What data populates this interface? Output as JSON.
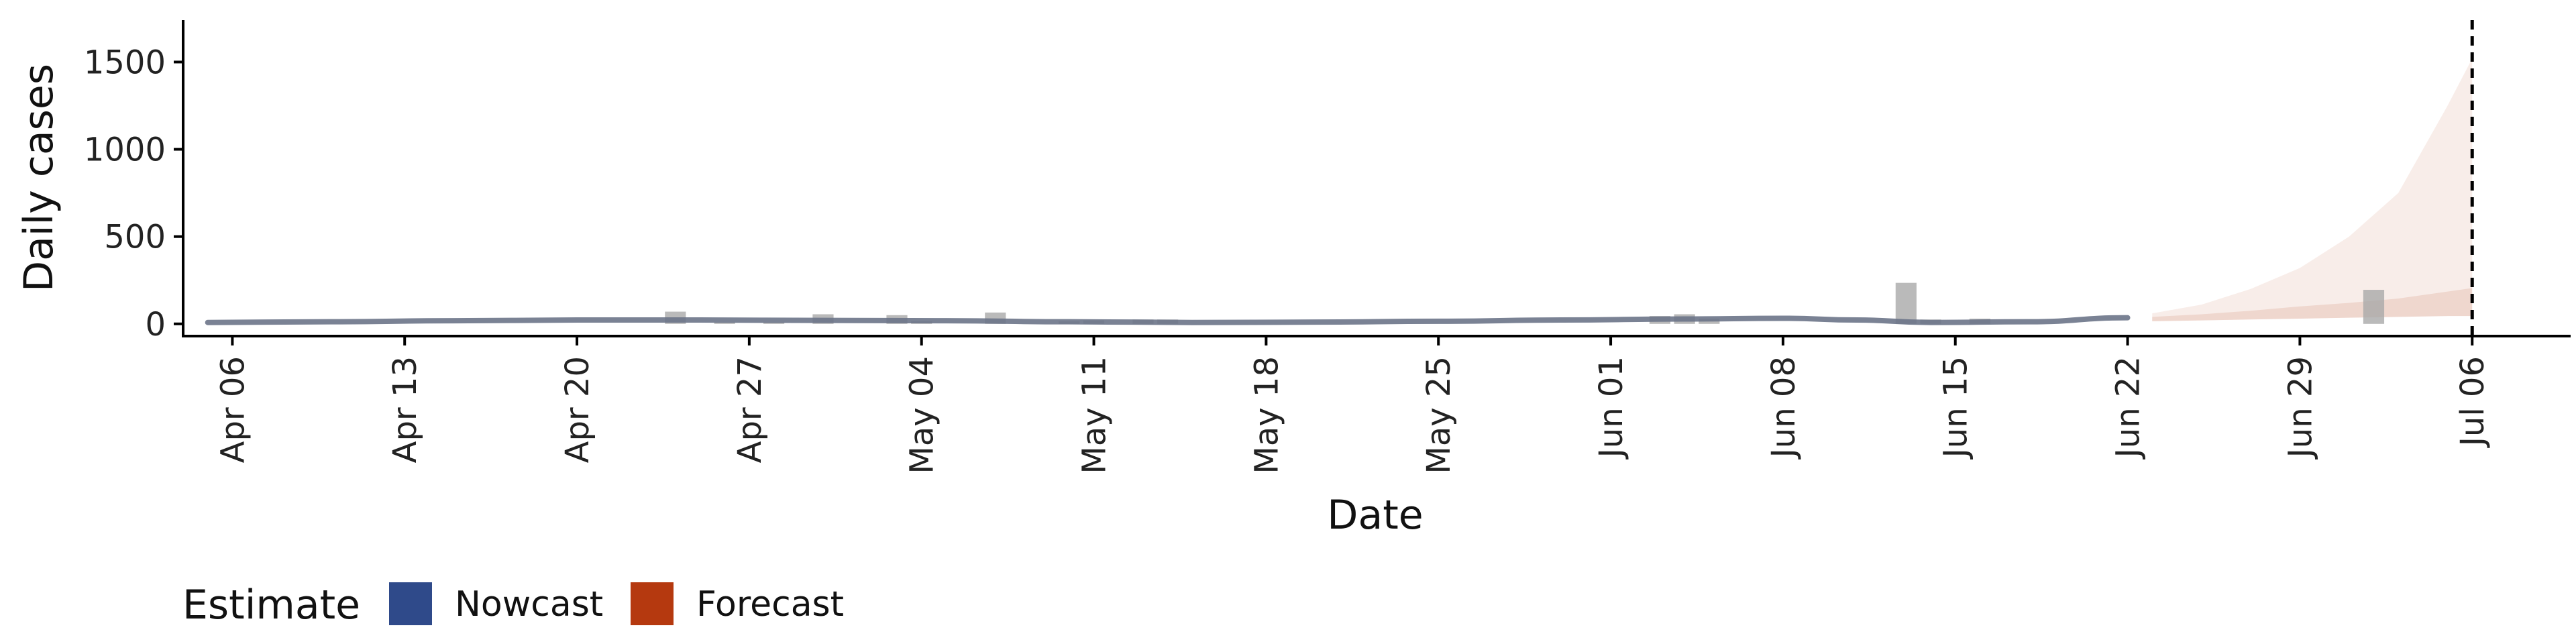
{
  "chart_data": {
    "type": "bar",
    "xlabel": "Date",
    "ylabel": "Daily cases",
    "x_tick_labels": [
      "Apr 06",
      "Apr 13",
      "Apr 20",
      "Apr 27",
      "May 04",
      "May 11",
      "May 18",
      "May 25",
      "Jun 01",
      "Jun 08",
      "Jun 15",
      "Jun 22",
      "Jun 29",
      "Jul 06"
    ],
    "y_tick_labels": [
      "0",
      "500",
      "1000",
      "1500"
    ],
    "y_ticks": [
      0,
      500,
      1000,
      1500
    ],
    "xlim": [
      "2020-04-04",
      "2020-07-10"
    ],
    "ylim": [
      -70,
      1740
    ],
    "grid": false,
    "forecast_date": "2020-07-06",
    "legend": {
      "title": "Estimate",
      "position": "bottom-left",
      "entries": [
        {
          "label": "Nowcast",
          "color": "#2f4a8a"
        },
        {
          "label": "Forecast",
          "color": "#b5390f"
        }
      ]
    },
    "colors": {
      "bars": "#a9a9a9",
      "nowcast_line": "#6b7488",
      "forecast_band": "#b5390f",
      "axis": "#000000"
    },
    "series": [
      {
        "type": "bar",
        "points": [
          {
            "x": "2020-04-24",
            "y": 70
          },
          {
            "x": "2020-04-26",
            "y": 10
          },
          {
            "x": "2020-04-28",
            "y": 10
          },
          {
            "x": "2020-04-30",
            "y": 55
          },
          {
            "x": "2020-05-03",
            "y": 50
          },
          {
            "x": "2020-05-04",
            "y": 15
          },
          {
            "x": "2020-05-07",
            "y": 65
          },
          {
            "x": "2020-05-10",
            "y": 15
          },
          {
            "x": "2020-05-11",
            "y": 20
          },
          {
            "x": "2020-05-13",
            "y": 25
          },
          {
            "x": "2020-05-14",
            "y": 25
          },
          {
            "x": "2020-06-03",
            "y": 45
          },
          {
            "x": "2020-06-04",
            "y": 55
          },
          {
            "x": "2020-06-05",
            "y": 30
          },
          {
            "x": "2020-06-13",
            "y": 235
          },
          {
            "x": "2020-06-14",
            "y": 25
          },
          {
            "x": "2020-06-16",
            "y": 30
          },
          {
            "x": "2020-07-02",
            "y": 195
          }
        ]
      },
      {
        "type": "line",
        "points": [
          {
            "x": "2020-04-05",
            "y": 8
          },
          {
            "x": "2020-04-10",
            "y": 12
          },
          {
            "x": "2020-04-15",
            "y": 18
          },
          {
            "x": "2020-04-20",
            "y": 22
          },
          {
            "x": "2020-04-25",
            "y": 22
          },
          {
            "x": "2020-04-30",
            "y": 20
          },
          {
            "x": "2020-05-05",
            "y": 18
          },
          {
            "x": "2020-05-10",
            "y": 12
          },
          {
            "x": "2020-05-15",
            "y": 8
          },
          {
            "x": "2020-05-20",
            "y": 10
          },
          {
            "x": "2020-05-25",
            "y": 15
          },
          {
            "x": "2020-05-30",
            "y": 22
          },
          {
            "x": "2020-06-04",
            "y": 28
          },
          {
            "x": "2020-06-08",
            "y": 32
          },
          {
            "x": "2020-06-11",
            "y": 22
          },
          {
            "x": "2020-06-14",
            "y": 8
          },
          {
            "x": "2020-06-18",
            "y": 12
          },
          {
            "x": "2020-06-22",
            "y": 35
          }
        ]
      },
      {
        "type": "band",
        "points": [
          {
            "x": "2020-06-23",
            "lower": 15,
            "upper": 60,
            "inner_upper": 40
          },
          {
            "x": "2020-06-25",
            "lower": 20,
            "upper": 110,
            "inner_upper": 55
          },
          {
            "x": "2020-06-27",
            "lower": 25,
            "upper": 200,
            "inner_upper": 75
          },
          {
            "x": "2020-06-29",
            "lower": 30,
            "upper": 320,
            "inner_upper": 100
          },
          {
            "x": "2020-07-01",
            "lower": 35,
            "upper": 500,
            "inner_upper": 120
          },
          {
            "x": "2020-07-03",
            "lower": 40,
            "upper": 750,
            "inner_upper": 145
          },
          {
            "x": "2020-07-05",
            "lower": 45,
            "upper": 1250,
            "inner_upper": 185
          },
          {
            "x": "2020-07-06",
            "lower": 45,
            "upper": 1520,
            "inner_upper": 205
          }
        ]
      }
    ]
  }
}
